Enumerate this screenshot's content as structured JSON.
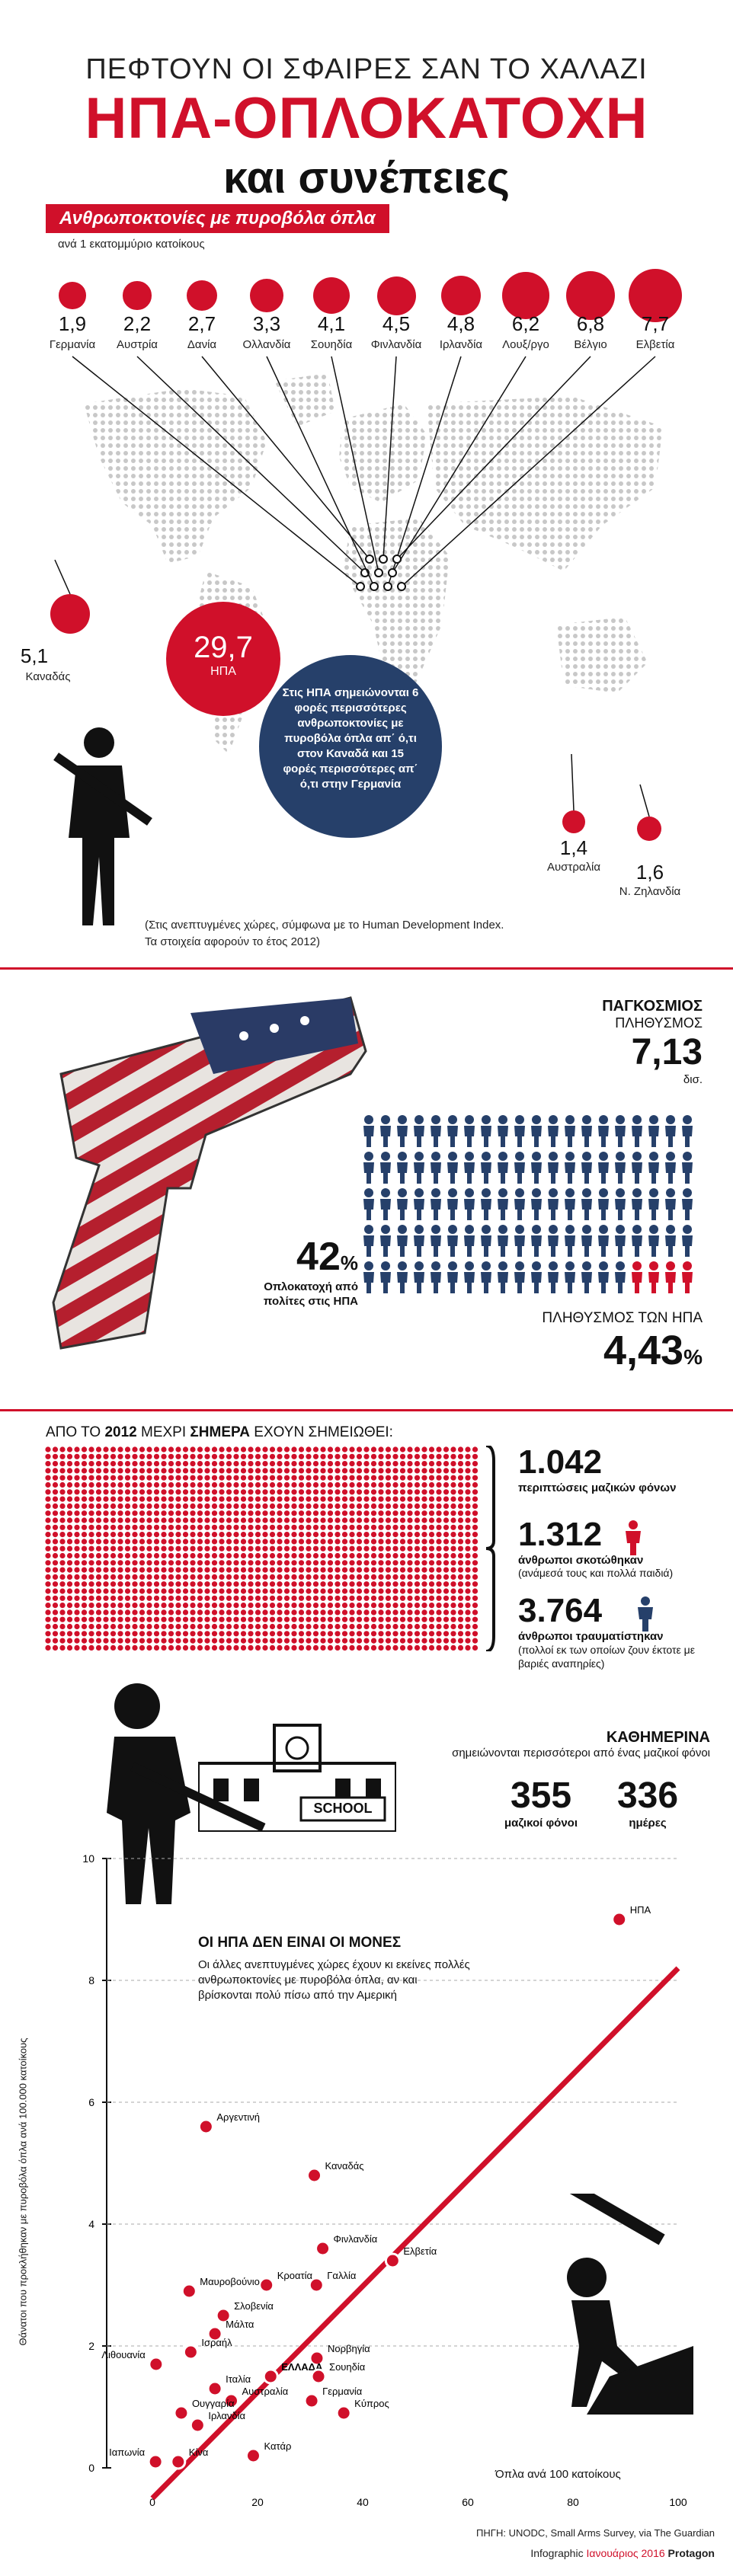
{
  "header": {
    "kicker": "ΠΕΦΤΟΥΝ ΟΙ ΣΦΑΙΡΕΣ ΣΑΝ ΤΟ ΧΑΛΑΖΙ",
    "title": "ΗΠΑ-ΟΠΛΟΚΑΤΟΧΗ",
    "subtitle": "και συνέπειες"
  },
  "section1": {
    "ribbon": "Ανθρωποκτονίες με πυροβόλα όπλα",
    "ribbon_sub": "ανά 1 εκατομμύριο κατοίκους",
    "countries": [
      {
        "value": "1,9",
        "name": "Γερμανία"
      },
      {
        "value": "2,2",
        "name": "Αυστρία"
      },
      {
        "value": "2,7",
        "name": "Δανία"
      },
      {
        "value": "3,3",
        "name": "Ολλανδία"
      },
      {
        "value": "4,1",
        "name": "Σουηδία"
      },
      {
        "value": "4,5",
        "name": "Φινλανδία"
      },
      {
        "value": "4,8",
        "name": "Ιρλανδία"
      },
      {
        "value": "6,2",
        "name": "Λουξ/ργο"
      },
      {
        "value": "6,8",
        "name": "Βέλγιο"
      },
      {
        "value": "7,7",
        "name": "Ελβετία"
      }
    ],
    "canada": {
      "value": "5,1",
      "name": "Καναδάς"
    },
    "usa": {
      "value": "29,7",
      "name": "ΗΠΑ"
    },
    "australia": {
      "value": "1,4",
      "name": "Αυστραλία"
    },
    "nz": {
      "value": "1,6",
      "name": "Ν. Ζηλανδία"
    },
    "blue_text": "Στις ΗΠΑ σημειώνονται 6 φορές περισσότερες ανθρωποκτονίες με πυροβόλα όπλα απ΄ ό,τι στον Καναδά και 15 φορές περισσότερες απ΄ ό,τι στην Γερμανία",
    "note": "(Στις ανεπτυγμένες χώρες, σύμφωνα με το Human Development Index.\nΤα στοιχεία αφορούν το έτος 2012)"
  },
  "section2": {
    "global_label_1": "ΠΑΓΚΟΣΜΙΟΣ",
    "global_label_2": "ΠΛΗΘΥΣΜΟΣ",
    "global_value": "7,13",
    "global_unit": "δισ.",
    "pct_value": "42",
    "pct_sign": "%",
    "pct_text": "Οπλοκατοχή από πολίτες στις ΗΠΑ",
    "us_label": "ΠΛΗΘΥΣΜΟΣ ΤΩΝ ΗΠΑ",
    "us_value": "4,43",
    "us_sign": "%",
    "colors": {
      "blue": "#26406a",
      "red": "#d0102a"
    }
  },
  "section3": {
    "heading_pre": "ΑΠΟ ΤΟ",
    "heading_year": "2012",
    "heading_mid": "ΜΕΧΡΙ",
    "heading_now": "ΣΗΜΕΡΑ",
    "heading_post": "ΕΧΟΥΝ ΣΗΜΕΙΩΘΕΙ:",
    "mass_value": "1.042",
    "mass_text": "περιπτώσεις μαζικών φόνων",
    "killed_value": "1.312",
    "killed_text": "άνθρωποι σκοτώθηκαν",
    "killed_sub": "(ανάμεσά τους και πολλά παιδιά)",
    "injured_value": "3.764",
    "injured_text": "άνθρωποι τραυματίστηκαν",
    "injured_sub": "(πολλοί εκ των οποίων ζουν έκτοτε με βαριές αναπηρίες)",
    "daily_title": "ΚΑΘΗΜΕΡΙΝΑ",
    "daily_text": "σημειώνονται περισσότεροι από ένας μαζικοί φόνοι",
    "stat1_value": "355",
    "stat1_label": "μαζικοί φόνοι",
    "stat2_value": "336",
    "stat2_label": "ημέρες",
    "school": "SCHOOL"
  },
  "chart_data": {
    "type": "scatter",
    "title": "ΟΙ ΗΠΑ ΔΕΝ ΕΙΝΑΙ ΟΙ ΜΟΝΕΣ",
    "subtitle": "Οι άλλες ανεπτυγμένες χώρες έχουν κι εκείνες πολλές ανθρωποκτονίες με πυροβόλα όπλα, αν και βρίσκονται πολύ πίσω από την Αμερική",
    "xlabel": "Όπλα ανά 100 κατοίκους",
    "ylabel": "Θάνατοι που προκλήθηκαν με πυροβόλα όπλα ανά 100.000 κατοίκους",
    "xlim": [
      0,
      100
    ],
    "ylim": [
      0,
      10
    ],
    "xticks": [
      "0",
      "20",
      "40",
      "60",
      "80",
      "100"
    ],
    "yticks": [
      "0",
      "2",
      "4",
      "6",
      "8",
      "10"
    ],
    "points": [
      {
        "name": "ΗΠΑ",
        "x": 88.8,
        "y": 9.0
      },
      {
        "name": "Αργεντινή",
        "x": 10.2,
        "y": 5.6
      },
      {
        "name": "Καναδάς",
        "x": 30.8,
        "y": 4.8
      },
      {
        "name": "Φινλανδία",
        "x": 32.4,
        "y": 3.6
      },
      {
        "name": "Ελβετία",
        "x": 45.7,
        "y": 3.4
      },
      {
        "name": "Γαλλία",
        "x": 31.2,
        "y": 3.0
      },
      {
        "name": "Κροατία",
        "x": 21.7,
        "y": 3.0
      },
      {
        "name": "Μαυροβούνιο",
        "x": 7.0,
        "y": 2.9
      },
      {
        "name": "Σλοβενία",
        "x": 13.5,
        "y": 2.5
      },
      {
        "name": "Μάλτα",
        "x": 11.9,
        "y": 2.2
      },
      {
        "name": "Ισραήλ",
        "x": 7.3,
        "y": 1.9
      },
      {
        "name": "Λιθουανία",
        "x": 0.7,
        "y": 1.7
      },
      {
        "name": "Νορβηγία",
        "x": 31.3,
        "y": 1.8
      },
      {
        "name": "ΕΛΛΑΔΑ",
        "x": 22.5,
        "y": 1.5
      },
      {
        "name": "Σουηδία",
        "x": 31.6,
        "y": 1.5
      },
      {
        "name": "Ιταλία",
        "x": 11.9,
        "y": 1.3
      },
      {
        "name": "Αυστραλία",
        "x": 15.0,
        "y": 1.1
      },
      {
        "name": "Γερμανία",
        "x": 30.3,
        "y": 1.1
      },
      {
        "name": "Ουγγαρία",
        "x": 5.5,
        "y": 0.9
      },
      {
        "name": "Κύπρος",
        "x": 36.4,
        "y": 0.9
      },
      {
        "name": "Ιρλανδία",
        "x": 8.6,
        "y": 0.7
      },
      {
        "name": "Κατάρ",
        "x": 19.2,
        "y": 0.2
      },
      {
        "name": "Ιαπωνία",
        "x": 0.6,
        "y": 0.1
      },
      {
        "name": "Κίνα",
        "x": 4.9,
        "y": 0.1
      }
    ],
    "trend": [
      [
        0,
        0
      ],
      [
        100,
        8.2
      ]
    ]
  },
  "footer": {
    "source": "ΠΗΓΗ: UNODC, Small Arms Survey, via The Guardian",
    "credit_pre": "Infographic",
    "credit_date": "Ιανουάριος 2016",
    "credit_brand": "Protagon"
  }
}
